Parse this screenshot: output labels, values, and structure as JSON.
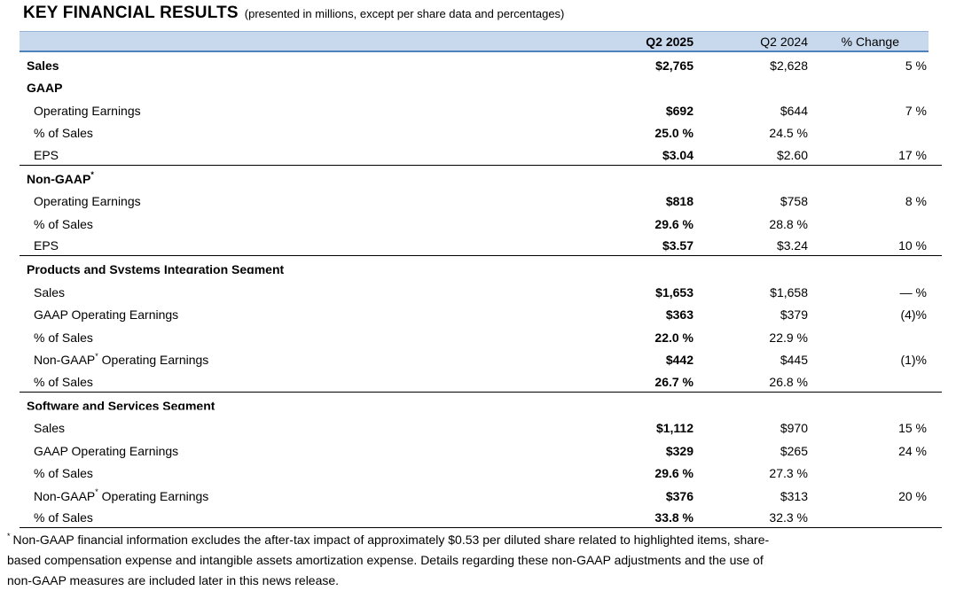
{
  "title": {
    "main": "KEY FINANCIAL RESULTS",
    "note": "(presented in millions, except per share data and percentages)"
  },
  "table": {
    "columns": [
      "Q2 2025",
      "Q2 2024",
      "% Change"
    ],
    "colors": {
      "header_fill": "#C8D9EE",
      "header_rule": "#4F81BD",
      "header_rule_top": "#95B3D7",
      "section_rule": "#000000"
    },
    "rows": [
      {
        "label": "Sales",
        "bold": true,
        "indent": false,
        "values": {
          "q2_2025": "$2,765",
          "q2_2024": "$2,628",
          "change": "5 %"
        },
        "section_end": false
      },
      {
        "label": "GAAP",
        "bold": true,
        "indent": false,
        "values": {
          "q2_2025": "",
          "q2_2024": "",
          "change": ""
        },
        "section_end": false
      },
      {
        "label": "Operating Earnings",
        "indent": true,
        "values": {
          "q2_2025": "$692",
          "q2_2024": "$644",
          "change": "7 %"
        },
        "section_end": false
      },
      {
        "label": "% of Sales",
        "indent": true,
        "values": {
          "q2_2025": "25.0 %",
          "q2_2024": "24.5 %",
          "change": ""
        },
        "section_end": false
      },
      {
        "label": "EPS",
        "indent": true,
        "values": {
          "q2_2025": "$3.04",
          "q2_2024": "$2.60",
          "change": "17 %"
        },
        "section_end": true
      },
      {
        "label": "Non-GAAP",
        "label_sup": "*",
        "bold": true,
        "indent": false,
        "values": {
          "q2_2025": "",
          "q2_2024": "",
          "change": ""
        },
        "section_end": false
      },
      {
        "label": "Operating Earnings",
        "indent": true,
        "values": {
          "q2_2025": "$818",
          "q2_2024": "$758",
          "change": "8 %"
        },
        "section_end": false
      },
      {
        "label": "% of Sales",
        "indent": true,
        "values": {
          "q2_2025": "29.6 %",
          "q2_2024": "28.8 %",
          "change": ""
        },
        "section_end": false
      },
      {
        "label": "EPS",
        "indent": true,
        "values": {
          "q2_2025": "$3.57",
          "q2_2024": "$3.24",
          "change": "10 %"
        },
        "section_end": true
      },
      {
        "label": "Products and Systems Integration Segment",
        "bold": true,
        "clipped": true,
        "indent": false,
        "values": {
          "q2_2025": "",
          "q2_2024": "",
          "change": ""
        },
        "section_end": false
      },
      {
        "label": "Sales",
        "indent": true,
        "values": {
          "q2_2025": "$1,653",
          "q2_2024": "$1,658",
          "change": "— %"
        },
        "section_end": false
      },
      {
        "label": "GAAP Operating Earnings",
        "indent": true,
        "values": {
          "q2_2025": "$363",
          "q2_2024": "$379",
          "change": "(4)%"
        },
        "section_end": false
      },
      {
        "label": "% of Sales",
        "indent": true,
        "values": {
          "q2_2025": "22.0 %",
          "q2_2024": "22.9 %",
          "change": ""
        },
        "section_end": false
      },
      {
        "label": "Non-GAAP",
        "label_sup": "*",
        "label_rest": " Operating Earnings",
        "indent": true,
        "values": {
          "q2_2025": "$442",
          "q2_2024": "$445",
          "change": "(1)%"
        },
        "section_end": false
      },
      {
        "label": "% of Sales",
        "indent": true,
        "values": {
          "q2_2025": "26.7 %",
          "q2_2024": "26.8 %",
          "change": ""
        },
        "section_end": true
      },
      {
        "label": "Software and Services Segment",
        "bold": true,
        "clipped": true,
        "indent": false,
        "values": {
          "q2_2025": "",
          "q2_2024": "",
          "change": ""
        },
        "section_end": false
      },
      {
        "label": "Sales",
        "indent": true,
        "values": {
          "q2_2025": "$1,112",
          "q2_2024": "$970",
          "change": "15 %"
        },
        "section_end": false
      },
      {
        "label": "GAAP Operating Earnings",
        "indent": true,
        "values": {
          "q2_2025": "$329",
          "q2_2024": "$265",
          "change": "24 %"
        },
        "section_end": false
      },
      {
        "label": "% of Sales",
        "indent": true,
        "values": {
          "q2_2025": "29.6 %",
          "q2_2024": "27.3 %",
          "change": ""
        },
        "section_end": false
      },
      {
        "label": "Non-GAAP",
        "label_sup": "*",
        "label_rest": " Operating Earnings",
        "indent": true,
        "values": {
          "q2_2025": "$376",
          "q2_2024": "$313",
          "change": "20 %"
        },
        "section_end": false
      },
      {
        "label": "% of Sales",
        "indent": true,
        "values": {
          "q2_2025": "33.8 %",
          "q2_2024": "32.3 %",
          "change": ""
        },
        "section_end": true
      }
    ]
  },
  "footnote": {
    "marker": "*",
    "lines": [
      "Non-GAAP financial information excludes the after-tax impact of approximately $0.53 per diluted share related to highlighted items, share-",
      "based compensation expense and intangible assets amortization expense. Details regarding these non-GAAP adjustments and the use of",
      "non-GAAP measures are included later in this news release."
    ]
  }
}
